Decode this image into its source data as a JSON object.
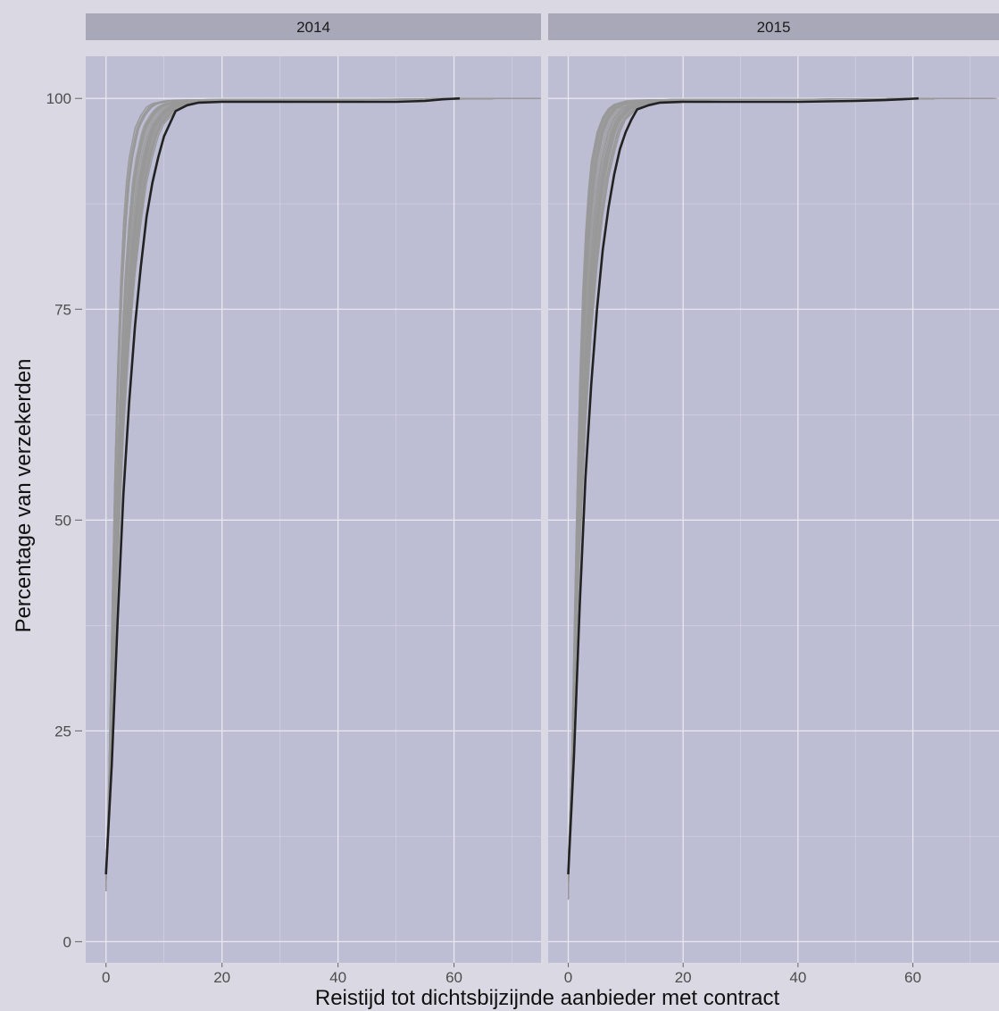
{
  "chart_data": {
    "type": "line",
    "facet_by": "year",
    "xlabel": "Reistijd tot dichtsbijzijnde aanbieder met contract",
    "ylabel": "Percentage van verzekerden",
    "xlim": [
      -3.5,
      75
    ],
    "ylim": [
      -2.5,
      105
    ],
    "x_ticks": [
      0,
      20,
      40,
      60
    ],
    "x_tick_labels": [
      "0",
      "20",
      "40",
      "60"
    ],
    "y_ticks": [
      0,
      25,
      50,
      75,
      100
    ],
    "y_tick_labels": [
      "0",
      "25",
      "50",
      "75",
      "100"
    ],
    "grid": true,
    "colors": {
      "panel_background": "#bdbdd3",
      "strip_background": "#a8a8b8",
      "gridline": "#e8e8f2",
      "insurer_lines": "#999999",
      "overall_line": "#222222"
    },
    "panels": [
      {
        "strip": "2014",
        "series": [
          {
            "style": "overall",
            "x": [
              0,
              1,
              2,
              3,
              4,
              5,
              6,
              7,
              8,
              9,
              10,
              11,
              12,
              14,
              16,
              20,
              30,
              40,
              50,
              55,
              58,
              61
            ],
            "y": [
              8,
              21,
              38,
              53,
              64,
              73,
              80,
              86,
              90,
              93,
              95.5,
              97,
              98.5,
              99.2,
              99.5,
              99.6,
              99.6,
              99.6,
              99.6,
              99.7,
              99.9,
              100
            ]
          },
          {
            "style": "insurer-fast",
            "x": [
              0,
              0.5,
              1,
              1.5,
              2,
              2.5,
              3,
              3.5,
              4,
              5,
              6,
              7,
              8,
              10,
              12,
              20,
              40,
              60,
              75
            ],
            "y": [
              6,
              20,
              38,
              55,
              68,
              78,
              85,
              90,
              93,
              96.5,
              98,
              99,
              99.4,
              99.7,
              99.8,
              99.9,
              99.9,
              99.95,
              100
            ]
          },
          {
            "style": "insurer-slow",
            "x": [
              0,
              1,
              2,
              3,
              4,
              5,
              6,
              7,
              8,
              9,
              10,
              12,
              14,
              16,
              20,
              30,
              60,
              70
            ],
            "y": [
              9,
              26,
              44,
              60,
              71,
              79,
              85,
              90,
              93,
              95.5,
              97,
              98.5,
              99.2,
              99.5,
              99.7,
              99.8,
              99.9,
              100
            ]
          }
        ]
      },
      {
        "strip": "2015",
        "series": [
          {
            "style": "overall",
            "x": [
              0,
              1,
              2,
              3,
              4,
              5,
              6,
              7,
              8,
              9,
              10,
              11,
              12,
              14,
              16,
              20,
              30,
              40,
              50,
              55,
              58,
              61
            ],
            "y": [
              8,
              22,
              40,
              55,
              66,
              75,
              82,
              87,
              91,
              94,
              96,
              97.5,
              98.7,
              99.2,
              99.5,
              99.6,
              99.6,
              99.6,
              99.7,
              99.8,
              99.9,
              100
            ]
          },
          {
            "style": "insurer-fast",
            "x": [
              0,
              0.5,
              1,
              1.5,
              2,
              2.5,
              3,
              3.5,
              4,
              5,
              6,
              7,
              8,
              10,
              12,
              20,
              40,
              60,
              70
            ],
            "y": [
              5,
              18,
              36,
              53,
              67,
              77,
              84,
              89,
              92.5,
              96,
              97.8,
              98.8,
              99.3,
              99.7,
              99.8,
              99.9,
              99.9,
              99.95,
              100
            ]
          },
          {
            "style": "insurer-slow",
            "x": [
              0,
              1,
              2,
              3,
              4,
              5,
              6,
              7,
              8,
              9,
              10,
              12,
              14,
              16,
              20,
              30,
              60,
              70
            ],
            "y": [
              10,
              28,
              46,
              61,
              72,
              80,
              86,
              90.5,
              93.5,
              96,
              97.5,
              98.8,
              99.3,
              99.6,
              99.8,
              99.9,
              99.95,
              100
            ]
          }
        ]
      }
    ]
  }
}
